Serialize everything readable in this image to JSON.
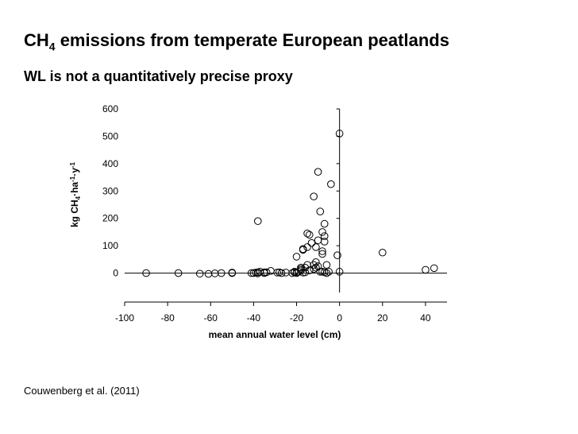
{
  "slide": {
    "title_main": "CH",
    "title_sub": "4",
    "title_rest": " emissions from temperate European peatlands",
    "subtitle": "WL is not a quantitatively precise proxy",
    "citation": "Couwenberg et al. (2011)"
  },
  "chart_data": {
    "type": "scatter",
    "title": "CH4 emissions from temperate European peatlands",
    "subtitle": "WL is not a quantitatively precise proxy",
    "xlabel": "mean annual water level (cm)",
    "ylabel_parts": [
      "kg CH",
      "4",
      "·ha",
      "-1",
      "·y",
      "-1"
    ],
    "xlim": [
      -100,
      50
    ],
    "ylim": [
      -100,
      600
    ],
    "x_ticks": [
      -100,
      -80,
      -60,
      -40,
      -20,
      0,
      20,
      40
    ],
    "y_ticks": [
      0,
      100,
      200,
      300,
      400,
      500,
      600
    ],
    "grid": false,
    "legend": "none",
    "marker": "open-circle",
    "x": [
      -90,
      -75,
      -65,
      -61,
      -58,
      -55,
      -50,
      -50,
      -41,
      -40,
      -39,
      -38,
      -38,
      -37,
      -35,
      -35,
      -34,
      -32,
      -29,
      -28,
      -27,
      -25,
      -22,
      -21,
      -21,
      -20,
      -20,
      -19,
      -18,
      -18,
      -17,
      -17,
      -17,
      -16,
      -16,
      -15,
      -15,
      -15,
      -14,
      -14,
      -13,
      -12,
      -12,
      -12,
      -11,
      -11,
      -11,
      -10,
      -10,
      -10,
      -9,
      -9,
      -8,
      -8,
      -8,
      -8,
      -7,
      -7,
      -7,
      -7,
      -6,
      -6,
      -5,
      -4,
      -1,
      0,
      0,
      20,
      40,
      44,
      -38,
      -20,
      -18
    ],
    "y": [
      0,
      0,
      -2,
      -3,
      -1,
      0,
      0,
      2,
      0,
      0,
      2,
      -1,
      190,
      5,
      0,
      3,
      3,
      8,
      2,
      3,
      0,
      2,
      0,
      5,
      3,
      60,
      0,
      5,
      10,
      15,
      88,
      85,
      2,
      3,
      20,
      30,
      95,
      145,
      140,
      10,
      110,
      15,
      30,
      280,
      95,
      40,
      20,
      370,
      120,
      25,
      225,
      5,
      70,
      80,
      150,
      5,
      3,
      115,
      135,
      180,
      0,
      30,
      5,
      325,
      65,
      5,
      510,
      75,
      12,
      18,
      3,
      3,
      20
    ]
  }
}
